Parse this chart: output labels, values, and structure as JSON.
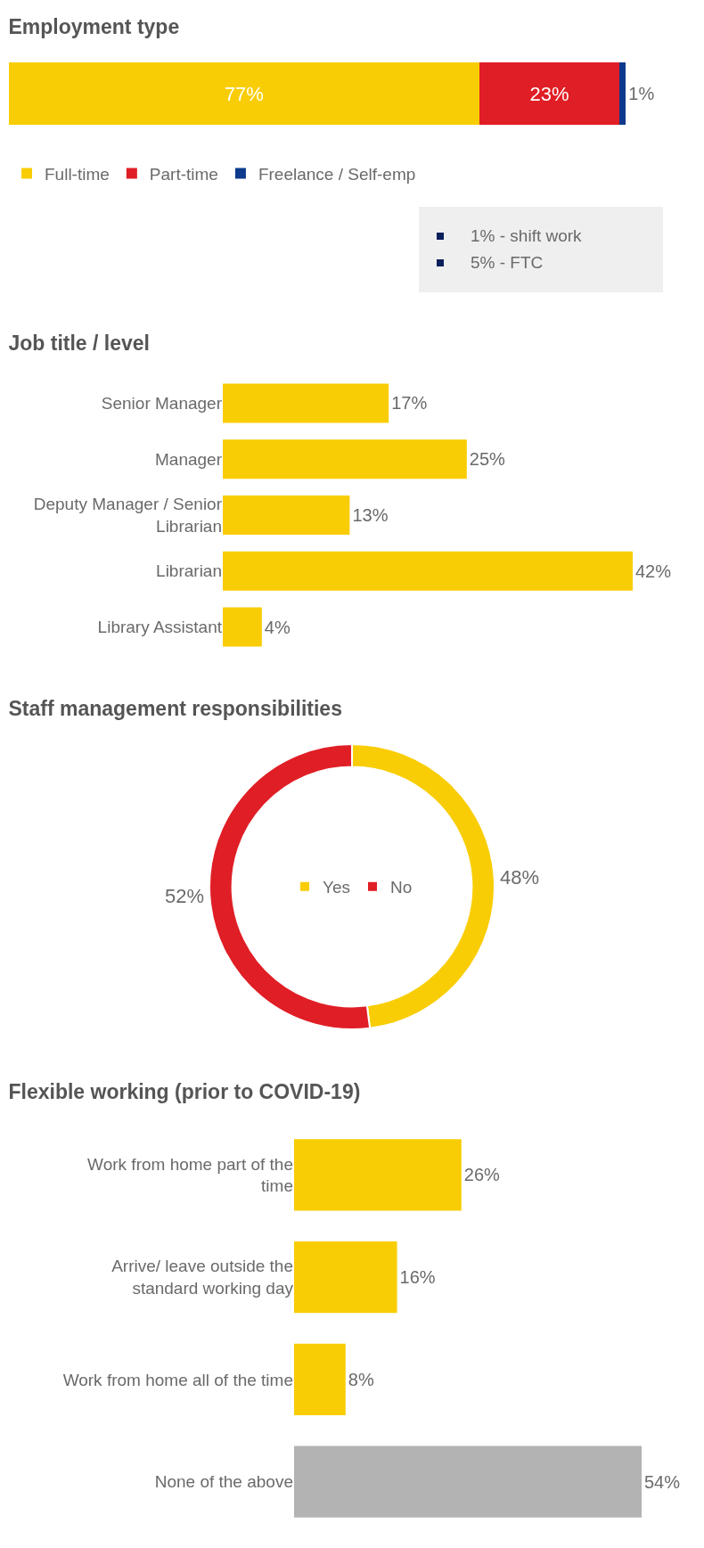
{
  "chart_data": [
    {
      "type": "bar",
      "title": "Employment type",
      "orientation": "horizontal",
      "stacked": true,
      "categories": [
        null
      ],
      "legend": "bottom",
      "tick_labels": false,
      "annotations": [
        "1% - shift work",
        "5% - FTC"
      ],
      "series": [
        {
          "name": "Full-time",
          "color": "#f9cd05",
          "values": [
            77
          ],
          "value_labels": [
            "77%"
          ]
        },
        {
          "name": "Part-time",
          "color": "#e01e25",
          "values": [
            23
          ],
          "value_labels": [
            "23%"
          ]
        },
        {
          "name": "Freelance / Self-emp",
          "color": "#0d3a8c",
          "values": [
            1
          ],
          "value_labels": [
            "1%"
          ]
        }
      ]
    },
    {
      "type": "bar",
      "title": "Job title / level",
      "orientation": "horizontal",
      "tick_labels": "y",
      "color": "#f9cd05",
      "categories": [
        "Senior Manager",
        "Manager",
        "Deputy Manager / Senior Librarian",
        "Librarian",
        "Library Assistant"
      ],
      "values": [
        17,
        25,
        13,
        42,
        4
      ],
      "value_labels": [
        "17%",
        "25%",
        "13%",
        "42%",
        "4%"
      ]
    },
    {
      "type": "donut",
      "title": "Staff management responsibilities",
      "legend": "center",
      "categories": [
        "Yes",
        "No"
      ],
      "values": [
        48,
        52
      ],
      "colors": [
        "#f9cd05",
        "#e01e25"
      ],
      "value_labels": [
        "48%",
        "52%"
      ]
    },
    {
      "type": "bar",
      "title": "Flexible working (prior to COVID-19)",
      "orientation": "horizontal",
      "tick_labels": "y",
      "categories": [
        "Work from home part of the time",
        "Arrive/ leave outside the standard working day",
        "Work from home all of the time",
        "None of the above"
      ],
      "values": [
        26,
        16,
        8,
        54
      ],
      "colors": [
        "#f9cd05",
        "#f9cd05",
        "#f9cd05",
        "#b3b3b3"
      ],
      "value_labels": [
        "26%",
        "16%",
        "8%",
        "54%"
      ]
    }
  ]
}
